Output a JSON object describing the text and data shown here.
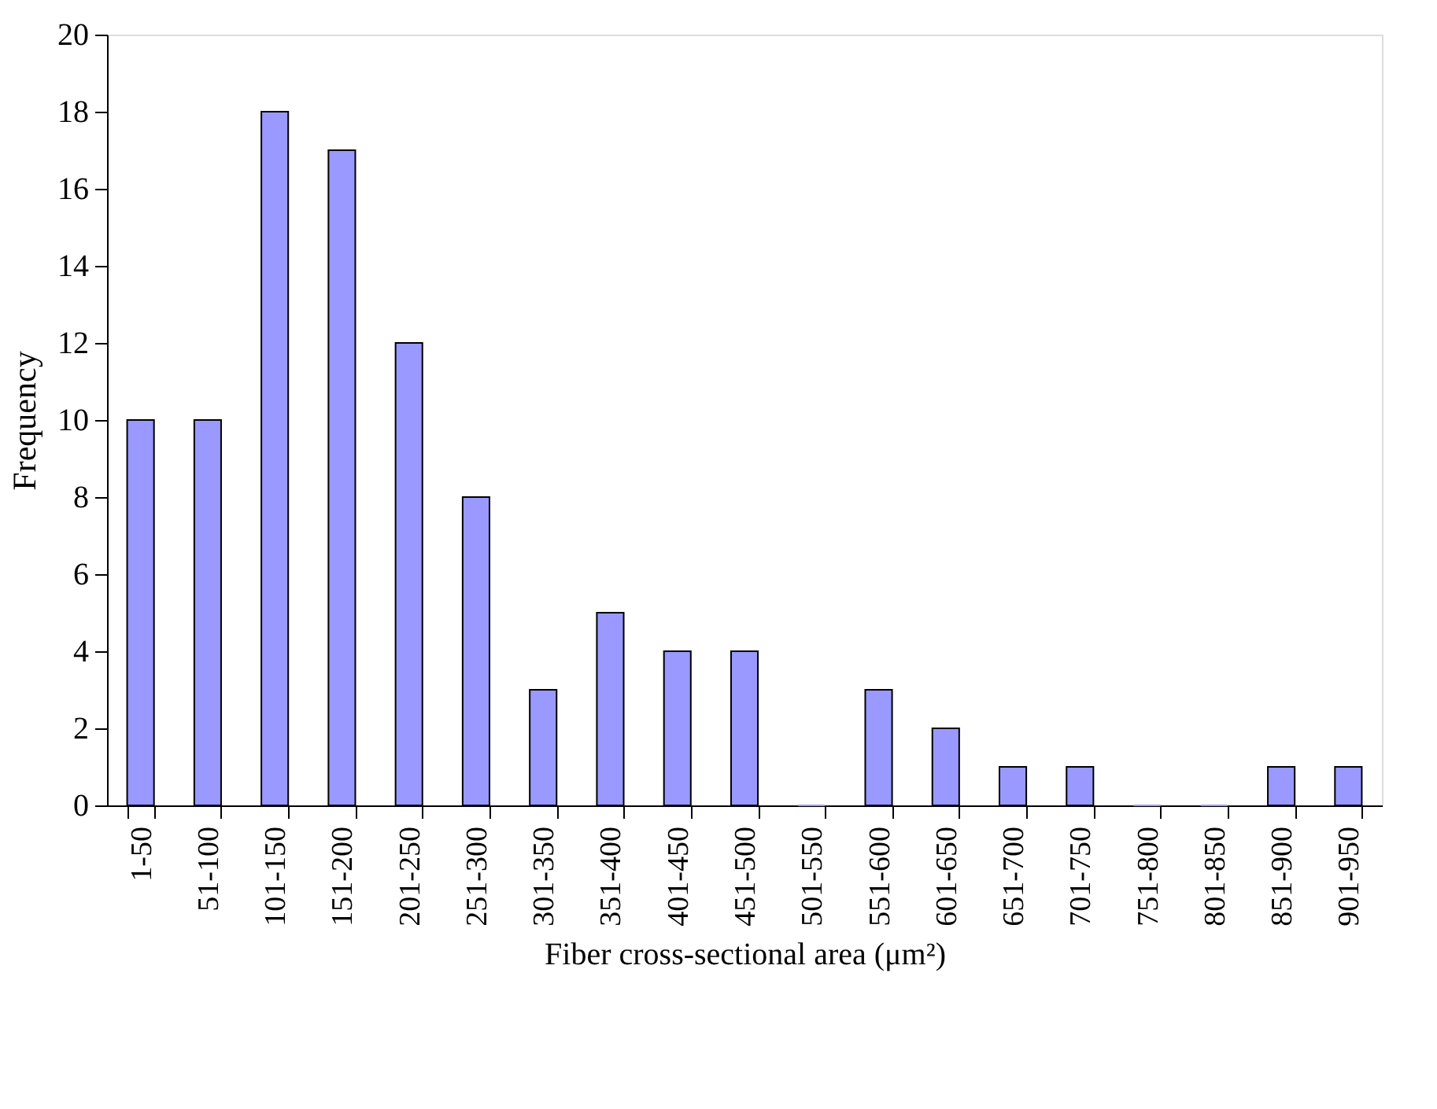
{
  "chart_data": {
    "type": "bar",
    "xlabel": "Fiber cross-sectional area (μm²)",
    "ylabel": "Frequency",
    "categories": [
      "1-50",
      "51-100",
      "101-150",
      "151-200",
      "201-250",
      "251-300",
      "301-350",
      "351-400",
      "401-450",
      "451-500",
      "501-550",
      "551-600",
      "601-650",
      "651-700",
      "701-750",
      "751-800",
      "801-850",
      "851-900",
      "901-950"
    ],
    "values": [
      10,
      10,
      18,
      17,
      12,
      8,
      3,
      5,
      4,
      4,
      0,
      3,
      2,
      1,
      1,
      0,
      0,
      1,
      1
    ],
    "color": "#9999ff",
    "ylim": [
      0,
      20
    ],
    "yticks": [
      0,
      2,
      4,
      6,
      8,
      10,
      12,
      14,
      16,
      18,
      20
    ],
    "grid": false
  }
}
